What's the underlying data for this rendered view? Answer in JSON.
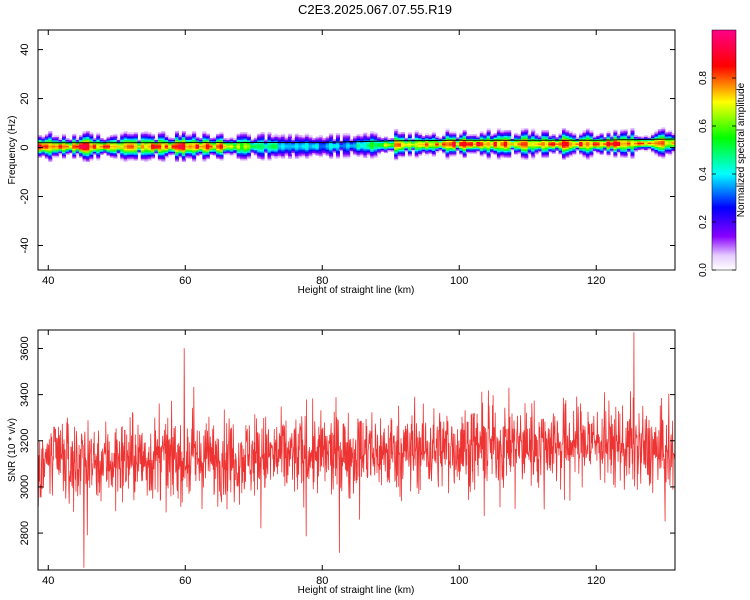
{
  "page": {
    "title": "C2E3.2025.067.07.55.R19"
  },
  "colors": {
    "snr_line": "#ee3333",
    "frame": "#000000",
    "colorbar": [
      "#ffffff",
      "#8800ff",
      "#0000ff",
      "#00ffff",
      "#00ff00",
      "#ffff00",
      "#ff0000",
      "#ff0088"
    ]
  },
  "chart_data": [
    {
      "type": "heatmap",
      "title": "",
      "xlabel": "Height of straight line (km)",
      "ylabel": "Frequency (Hz)",
      "xlim": [
        38.5,
        131.5
      ],
      "ylim": [
        -50,
        48
      ],
      "x_ticks": [
        40,
        60,
        80,
        100,
        120
      ],
      "y_ticks": [
        -40,
        -20,
        0,
        20,
        40
      ],
      "colorbar": {
        "label": "Normalized spectral amplitude",
        "range": [
          0,
          1
        ],
        "ticks": [
          0.0,
          0.2,
          0.4,
          0.6,
          0.8
        ],
        "tick_labels": [
          "0.0",
          "0.2",
          "0.4",
          "0.6",
          "0.8"
        ]
      },
      "band_center_hz": [
        [
          38.5,
          0.5
        ],
        [
          60,
          0.5
        ],
        [
          80,
          0.6
        ],
        [
          90,
          1.2
        ],
        [
          100,
          1.5
        ],
        [
          110,
          1.5
        ],
        [
          120,
          1.5
        ],
        [
          131.5,
          2.0
        ]
      ],
      "band_peak_amplitude": [
        [
          38.5,
          0.9
        ],
        [
          45,
          0.92
        ],
        [
          50,
          0.85
        ],
        [
          55,
          0.9
        ],
        [
          60,
          0.92
        ],
        [
          65,
          0.85
        ],
        [
          70,
          0.6
        ],
        [
          75,
          0.45
        ],
        [
          80,
          0.4
        ],
        [
          85,
          0.45
        ],
        [
          90,
          0.8
        ],
        [
          100,
          0.92
        ],
        [
          110,
          0.9
        ],
        [
          120,
          0.9
        ],
        [
          131.5,
          0.88
        ]
      ]
    },
    {
      "type": "line",
      "title": "",
      "xlabel": "Height of straight line (km)",
      "ylabel": "SNR (10 * v/v)",
      "xlim": [
        38.5,
        131.5
      ],
      "ylim": [
        2640,
        3680
      ],
      "x_ticks": [
        40,
        60,
        80,
        100,
        120
      ],
      "y_ticks": [
        2800,
        3000,
        3200,
        3400,
        3600
      ],
      "series": [
        {
          "values_summary": "noisy trace",
          "x_step_km": 0.05,
          "mean": [
            [
              38.5,
              3110
            ],
            [
              60,
              3120
            ],
            [
              80,
              3140
            ],
            [
              100,
              3170
            ],
            [
              120,
              3200
            ],
            [
              131.5,
              3140
            ]
          ],
          "max": 3670,
          "min": 2650,
          "max_at_km": 125.5,
          "min_at_km": 45.2
        }
      ]
    }
  ]
}
